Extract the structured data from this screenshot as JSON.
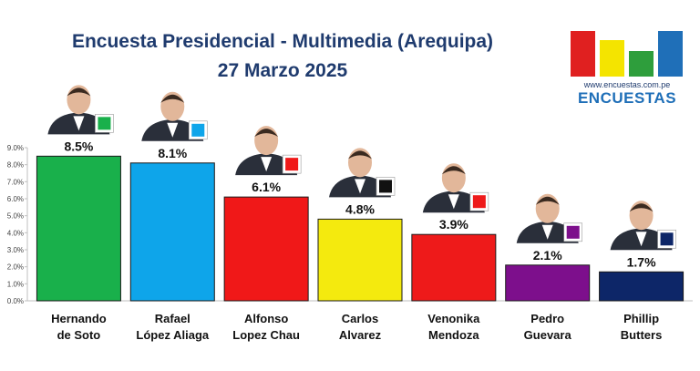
{
  "header": {
    "title_line1": "Encuesta Presidencial - Multimedia (Arequipa)",
    "title_line2": "27 Marzo 2025"
  },
  "logo": {
    "url": "www.encuestas.com.pe",
    "word": "ENCUESTAS",
    "bar_colors": [
      "#e02020",
      "#f4e400",
      "#2e9e3c",
      "#1f6fb8"
    ]
  },
  "candidates": [
    {
      "line1": "Hernando",
      "line2": "de Soto",
      "badge_icon": "green-puma-icon"
    },
    {
      "line1": "Rafael",
      "line2": "López Aliaga",
      "badge_icon": "blue-r-icon"
    },
    {
      "line1": "Alfonso",
      "line2": "Lopez Chau",
      "badge_icon": "red-helmet-icon"
    },
    {
      "line1": "Carlos",
      "line2": "Alvarez",
      "badge_icon": "yellow-k-icon"
    },
    {
      "line1": "Venonika",
      "line2": "Mendoza",
      "badge_icon": "red-flower-icon"
    },
    {
      "line1": "Pedro",
      "line2": "Guevara",
      "badge_icon": "peru-primero-icon"
    },
    {
      "line1": "Phillip",
      "line2": "Butters",
      "badge_icon": "blue-train-icon"
    }
  ],
  "chart_data": {
    "type": "bar",
    "categories": [
      "Hernando de Soto",
      "Rafael López Aliaga",
      "Alfonso Lopez Chau",
      "Carlos Alvarez",
      "Venonika Mendoza",
      "Pedro Guevara",
      "Phillip Butters"
    ],
    "values": [
      8.5,
      8.1,
      6.1,
      4.8,
      3.9,
      2.1,
      1.7
    ],
    "value_labels": [
      "8.5%",
      "8.1%",
      "6.1%",
      "4.8%",
      "3.9%",
      "2.1%",
      "1.7%"
    ],
    "colors": [
      "#19b04b",
      "#0ea5ea",
      "#f01818",
      "#f4ea0e",
      "#ee1a1a",
      "#7d0f8c",
      "#0d2668"
    ],
    "ylim": [
      0,
      9
    ],
    "yticks": [
      "0.0%",
      "1.0%",
      "2.0%",
      "3.0%",
      "4.0%",
      "5.0%",
      "6.0%",
      "7.0%",
      "8.0%",
      "9.0%"
    ],
    "grid": false,
    "legend": false
  }
}
